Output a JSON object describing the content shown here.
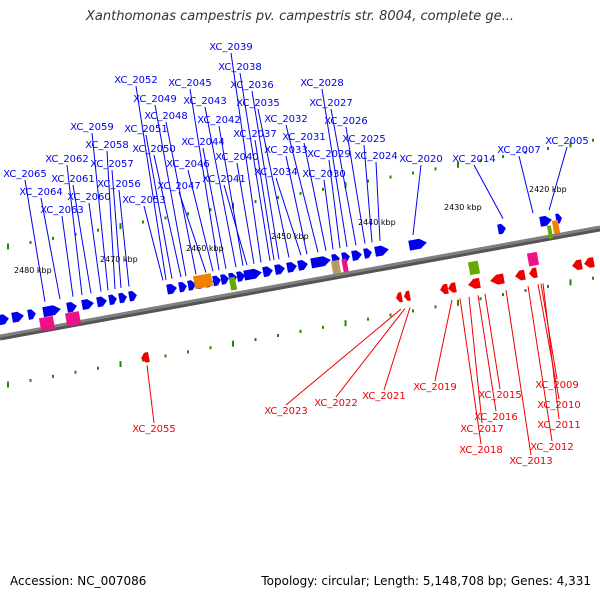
{
  "title": "Xanthomonas campestris pv. campestris str. 8004, complete ge...",
  "footer": {
    "accession": "Accession: NC_007086",
    "summary": "Topology: circular; Length: 5,148,708 bp; Genes: 4,331"
  },
  "colors": {
    "forward": "#0000ee",
    "reverse": "#ee0000",
    "trna": "#ee1188",
    "rrna": "#f08000",
    "misc": "#66aa00",
    "backbone": "#808080",
    "tick": "#228800"
  },
  "scale": [
    {
      "label": "2420 kbp"
    },
    {
      "label": "2430 kbp"
    },
    {
      "label": "2440 kbp"
    },
    {
      "label": "2450 kbp"
    },
    {
      "label": "2460 kbp"
    },
    {
      "label": "2470 kbp"
    },
    {
      "label": "2480 kbp"
    }
  ],
  "forward_genes": [
    "XC_2005",
    "XC_2007",
    "XC_2014",
    "XC_2020",
    "XC_2024",
    "XC_2025",
    "XC_2026",
    "XC_2027",
    "XC_2028",
    "XC_2029",
    "XC_2030",
    "XC_2031",
    "XC_2032",
    "XC_2033",
    "XC_2034",
    "XC_2035",
    "XC_2036",
    "XC_2037",
    "XC_2038",
    "XC_2039",
    "XC_2040",
    "XC_2041",
    "XC_2042",
    "XC_2043",
    "XC_2044",
    "XC_2045",
    "XC_2046",
    "XC_2047",
    "XC_2048",
    "XC_2049",
    "XC_2050",
    "XC_2051",
    "XC_2052",
    "XC_2053",
    "XC_2056",
    "XC_2057",
    "XC_2058",
    "XC_2059",
    "XC_2060",
    "XC_2061",
    "XC_2062",
    "XC_2063",
    "XC_2064",
    "XC_2065"
  ],
  "reverse_genes": [
    "XC_2009",
    "XC_2010",
    "XC_2011",
    "XC_2012",
    "XC_2013",
    "XC_2015",
    "XC_2016",
    "XC_2017",
    "XC_2018",
    "XC_2019",
    "XC_2021",
    "XC_2022",
    "XC_2023",
    "XC_2055"
  ]
}
